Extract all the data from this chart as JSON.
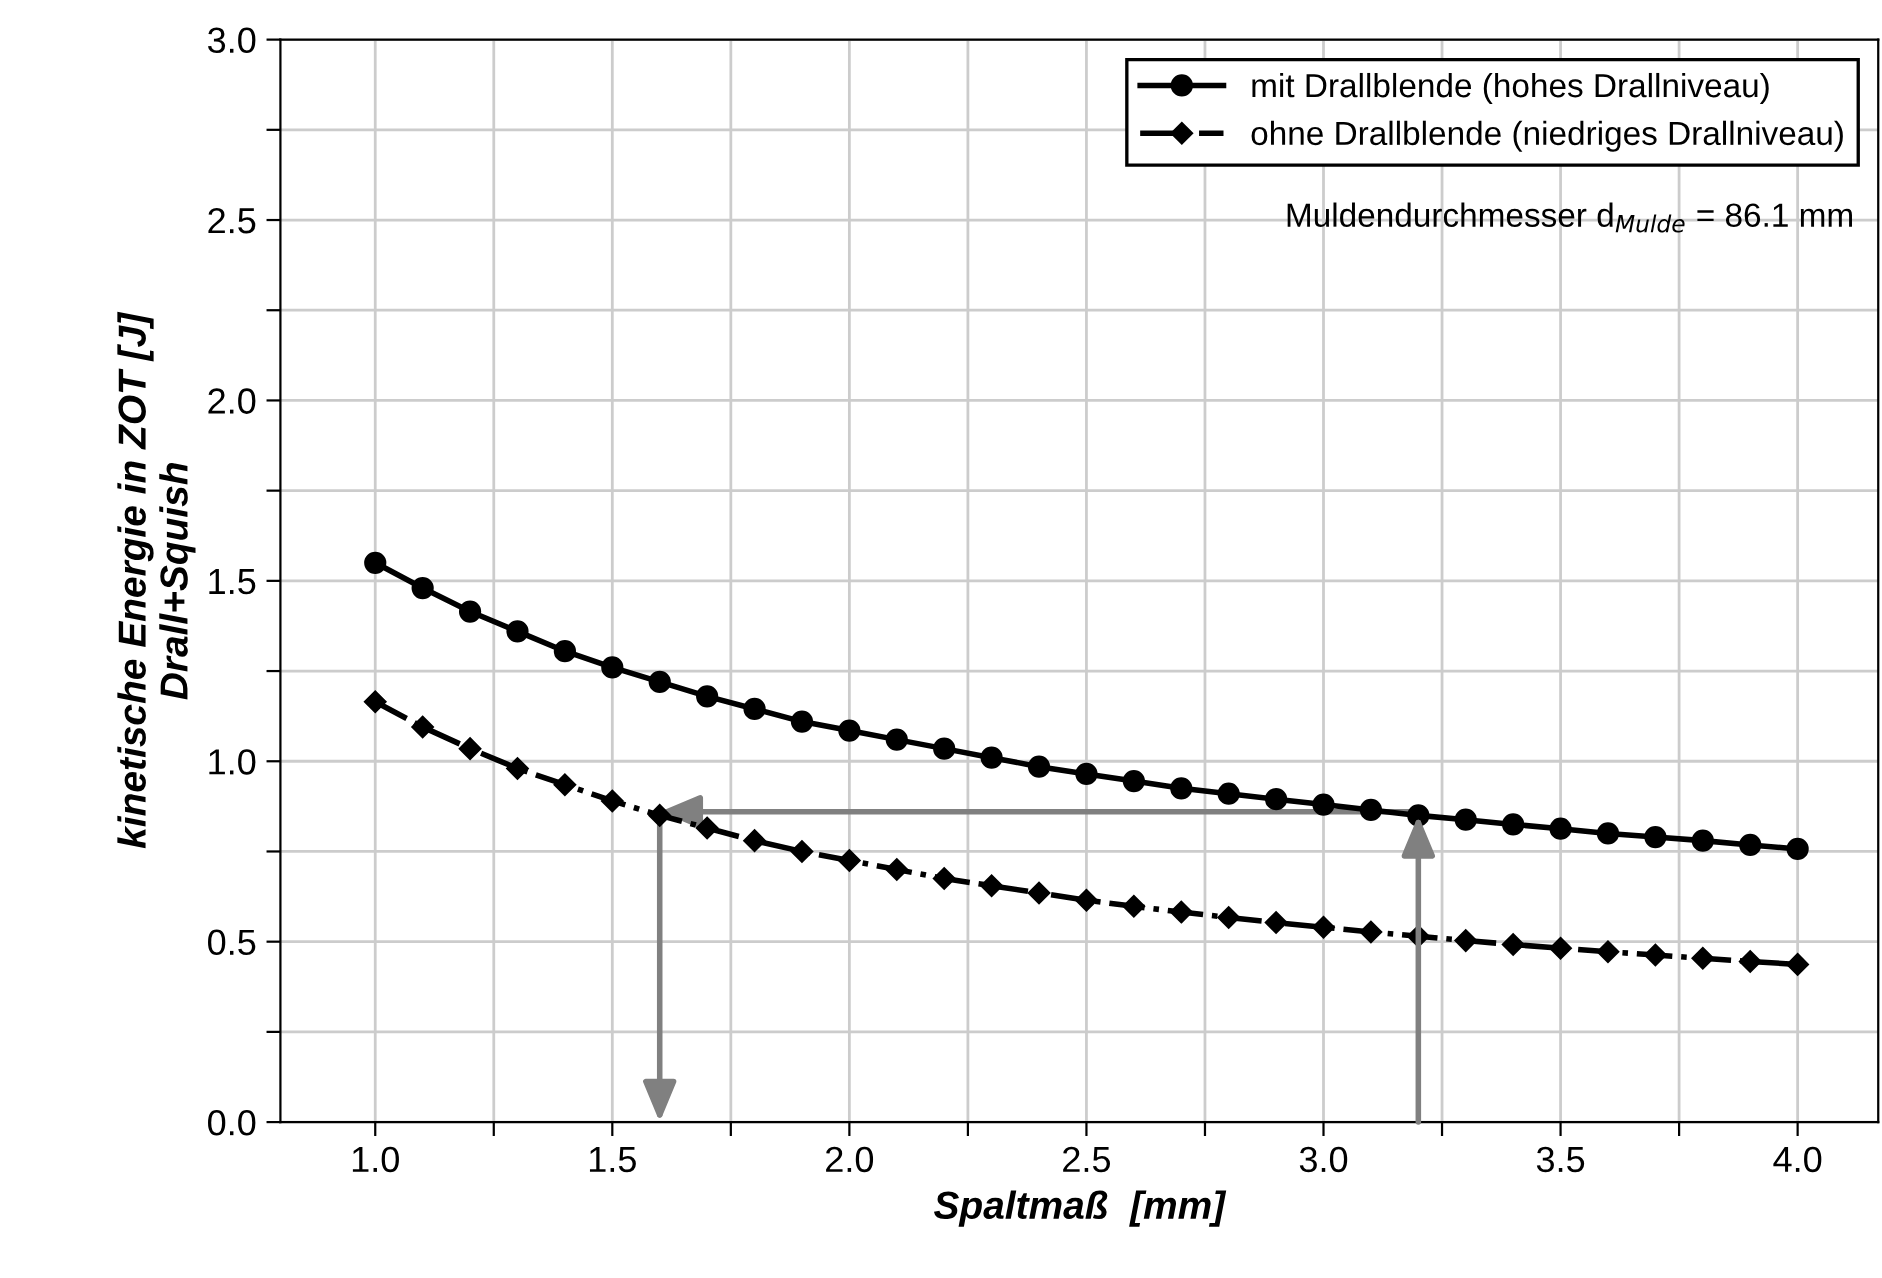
{
  "chart_data": {
    "type": "line",
    "xlabel": "Spaltmaß  [mm]",
    "ylabel": "kinetische Energie in ZOT [J]\nDrall+Squish",
    "x": [
      1.0,
      1.1,
      1.2,
      1.3,
      1.4,
      1.5,
      1.6,
      1.7,
      1.8,
      1.9,
      2.0,
      2.1,
      2.2,
      2.3,
      2.4,
      2.5,
      2.6,
      2.7,
      2.8,
      2.9,
      3.0,
      3.1,
      3.2,
      3.3,
      3.4,
      3.5,
      3.6,
      3.7,
      3.8,
      3.9,
      4.0
    ],
    "series": [
      {
        "name": "mit Drallblende (hohes Drallniveau)",
        "color": "#000000",
        "marker": "circle",
        "line_style": "solid",
        "values": [
          1.55,
          1.48,
          1.415,
          1.36,
          1.305,
          1.26,
          1.22,
          1.18,
          1.145,
          1.11,
          1.085,
          1.06,
          1.035,
          1.01,
          0.985,
          0.965,
          0.945,
          0.925,
          0.91,
          0.895,
          0.88,
          0.865,
          0.85,
          0.838,
          0.825,
          0.813,
          0.8,
          0.79,
          0.78,
          0.768,
          0.757
        ]
      },
      {
        "name": "ohne Drallblende (niedriges Drallniveau)",
        "color": "#000000",
        "marker": "diamond",
        "line_style": "dashdot",
        "values": [
          1.165,
          1.095,
          1.035,
          0.98,
          0.935,
          0.89,
          0.85,
          0.815,
          0.78,
          0.75,
          0.725,
          0.7,
          0.675,
          0.655,
          0.635,
          0.615,
          0.598,
          0.582,
          0.567,
          0.553,
          0.54,
          0.527,
          0.515,
          0.503,
          0.492,
          0.482,
          0.472,
          0.463,
          0.454,
          0.445,
          0.437
        ]
      }
    ],
    "xlim": [
      0.8,
      4.17
    ],
    "ylim": [
      0,
      3.0
    ],
    "xticks": [
      {
        "value": 1.0,
        "label": "1.0"
      },
      {
        "value": 1.25,
        "label": null
      },
      {
        "value": 1.5,
        "label": "1.5"
      },
      {
        "value": 1.75,
        "label": null
      },
      {
        "value": 2.0,
        "label": "2.0"
      },
      {
        "value": 2.25,
        "label": null
      },
      {
        "value": 2.5,
        "label": "2.5"
      },
      {
        "value": 2.75,
        "label": null
      },
      {
        "value": 3.0,
        "label": "3.0"
      },
      {
        "value": 3.25,
        "label": null
      },
      {
        "value": 3.5,
        "label": "3.5"
      },
      {
        "value": 3.75,
        "label": null
      },
      {
        "value": 4.0,
        "label": "4.0"
      }
    ],
    "yticks": [
      {
        "value": 0,
        "label": "0.0"
      },
      {
        "value": 0.25,
        "label": null
      },
      {
        "value": 0.5,
        "label": "0.5"
      },
      {
        "value": 0.75,
        "label": null
      },
      {
        "value": 1.0,
        "label": "1.0"
      },
      {
        "value": 1.25,
        "label": null
      },
      {
        "value": 1.5,
        "label": "1.5"
      },
      {
        "value": 1.75,
        "label": null
      },
      {
        "value": 2.0,
        "label": "2.0"
      },
      {
        "value": 2.25,
        "label": null
      },
      {
        "value": 2.5,
        "label": "2.5"
      },
      {
        "value": 2.75,
        "label": null
      },
      {
        "value": 3.0,
        "label": "3.0"
      }
    ],
    "grid": true,
    "legend": "top right",
    "annotations": [
      "Muldendurchmesser d$_{Mulde}$ = 86.1 mm"
    ]
  }
}
